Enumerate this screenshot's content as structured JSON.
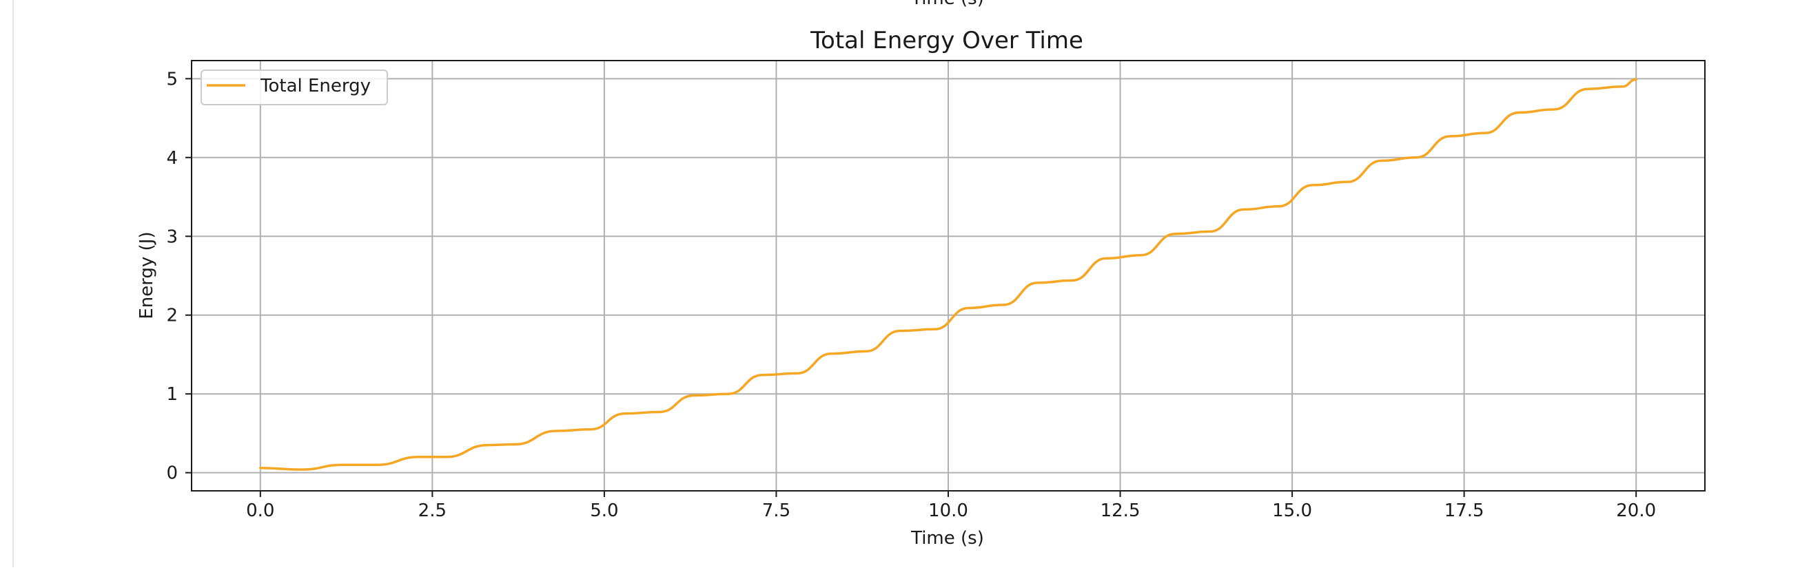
{
  "cut_off_label": "Time (s)",
  "chart_data": {
    "type": "line",
    "title": "Total Energy Over Time",
    "xlabel": "Time (s)",
    "ylabel": "Energy (J)",
    "xlim": [
      -1.0,
      21.0
    ],
    "ylim": [
      -0.23,
      5.23
    ],
    "xticks": [
      0.0,
      2.5,
      5.0,
      7.5,
      10.0,
      12.5,
      15.0,
      17.5,
      20.0
    ],
    "xtick_labels": [
      "0.0",
      "2.5",
      "5.0",
      "7.5",
      "10.0",
      "12.5",
      "15.0",
      "17.5",
      "20.0"
    ],
    "yticks": [
      0,
      1,
      2,
      3,
      4,
      5
    ],
    "ytick_labels": [
      "0",
      "1",
      "2",
      "3",
      "4",
      "5"
    ],
    "grid": true,
    "legend_position": "top-left",
    "colors": {
      "series": "#f5a623"
    },
    "series": [
      {
        "name": "Total Energy",
        "x": [
          0.0,
          0.6,
          1.2,
          1.7,
          2.3,
          2.7,
          3.3,
          3.7,
          4.3,
          4.8,
          5.3,
          5.8,
          6.3,
          6.8,
          7.3,
          7.8,
          8.3,
          8.8,
          9.3,
          9.8,
          10.3,
          10.8,
          11.3,
          11.8,
          12.3,
          12.8,
          13.3,
          13.8,
          14.3,
          14.8,
          15.3,
          15.8,
          16.3,
          16.8,
          17.3,
          17.8,
          18.3,
          18.8,
          19.3,
          19.8,
          20.0
        ],
        "y": [
          0.06,
          0.04,
          0.1,
          0.1,
          0.2,
          0.2,
          0.35,
          0.36,
          0.53,
          0.55,
          0.75,
          0.77,
          0.98,
          1.0,
          1.24,
          1.26,
          1.51,
          1.54,
          1.8,
          1.82,
          2.09,
          2.13,
          2.41,
          2.44,
          2.72,
          2.76,
          3.03,
          3.06,
          3.34,
          3.38,
          3.65,
          3.69,
          3.96,
          4.0,
          4.27,
          4.31,
          4.57,
          4.61,
          4.87,
          4.9,
          4.99
        ]
      }
    ]
  }
}
